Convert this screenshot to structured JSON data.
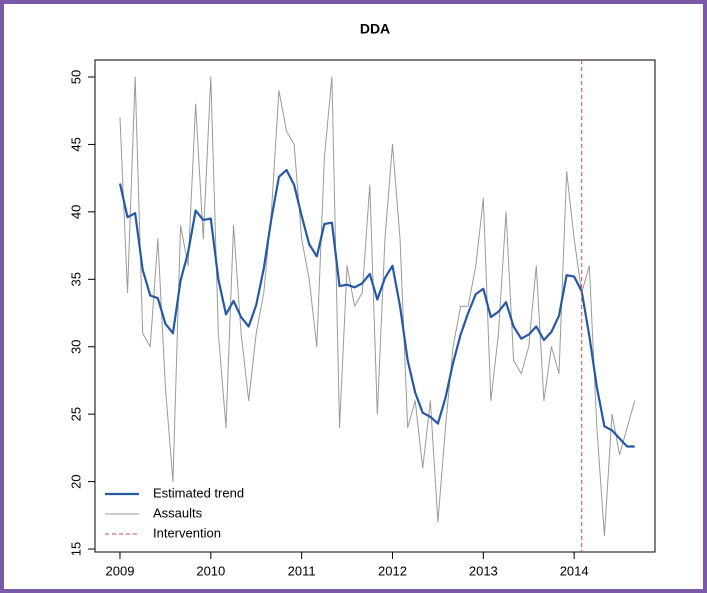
{
  "chart_data": {
    "type": "line",
    "title": "DDA",
    "x": [
      2009,
      2009.083,
      2009.167,
      2009.25,
      2009.333,
      2009.417,
      2009.5,
      2009.583,
      2009.667,
      2009.75,
      2009.833,
      2009.917,
      2010,
      2010.083,
      2010.167,
      2010.25,
      2010.333,
      2010.417,
      2010.5,
      2010.583,
      2010.667,
      2010.75,
      2010.833,
      2010.917,
      2011,
      2011.083,
      2011.167,
      2011.25,
      2011.333,
      2011.417,
      2011.5,
      2011.583,
      2011.667,
      2011.75,
      2011.833,
      2011.917,
      2012,
      2012.083,
      2012.167,
      2012.25,
      2012.333,
      2012.417,
      2012.5,
      2012.583,
      2012.667,
      2012.75,
      2012.833,
      2012.917,
      2013,
      2013.083,
      2013.167,
      2013.25,
      2013.333,
      2013.417,
      2013.5,
      2013.583,
      2013.667,
      2013.75,
      2013.833,
      2013.917,
      2014,
      2014.083,
      2014.167,
      2014.25,
      2014.333,
      2014.417,
      2014.5,
      2014.583,
      2014.667
    ],
    "series": [
      {
        "name": "Assaults",
        "color": "#9a9a9a",
        "values": [
          47,
          34,
          50,
          31,
          30,
          38,
          27,
          20,
          39,
          36,
          48,
          38,
          50,
          31,
          24,
          39,
          31,
          26,
          31,
          34,
          40,
          49,
          46,
          45,
          38,
          35,
          30,
          44,
          50,
          24,
          36,
          33,
          34,
          42,
          25,
          38,
          45,
          38,
          24,
          26,
          21,
          26,
          17,
          24,
          30,
          33,
          33,
          36,
          41,
          26,
          31,
          40,
          29,
          28,
          30,
          36,
          26,
          30,
          28,
          43,
          38,
          34,
          36,
          24,
          16,
          25,
          22,
          24,
          26
        ]
      },
      {
        "name": "Estimated trend",
        "color": "#2558a5",
        "values": [
          42.1,
          39.6,
          39.9,
          35.7,
          33.8,
          33.6,
          31.7,
          31.0,
          34.9,
          37.0,
          40.1,
          39.4,
          39.5,
          35.0,
          32.4,
          33.4,
          32.2,
          31.5,
          33.1,
          35.8,
          39.5,
          42.6,
          43.1,
          42.0,
          39.7,
          37.6,
          36.7,
          39.1,
          39.2,
          34.5,
          34.6,
          34.4,
          34.7,
          35.4,
          33.5,
          35.1,
          36.0,
          33.0,
          29.0,
          26.6,
          25.1,
          24.8,
          24.3,
          26.2,
          28.8,
          30.9,
          32.5,
          33.9,
          34.3,
          32.2,
          32.6,
          33.3,
          31.5,
          30.6,
          30.9,
          31.5,
          30.5,
          31.1,
          32.3,
          35.3,
          35.2,
          34.1,
          30.8,
          27.0,
          24.1,
          23.8,
          23.2,
          22.6,
          22.6
        ]
      }
    ],
    "intervention": {
      "name": "Intervention",
      "x": 2014.083,
      "color": "#e0474c"
    },
    "legend_order": [
      1,
      0
    ],
    "legend": "bottom-left",
    "xlim": [
      2008.725,
      2014.89
    ],
    "xticks": [
      2009,
      2010,
      2011,
      2012,
      2013,
      2014
    ],
    "ylim": [
      14.78,
      51.26
    ],
    "yticks": [
      15,
      20,
      25,
      30,
      35,
      40,
      45,
      50
    ]
  }
}
